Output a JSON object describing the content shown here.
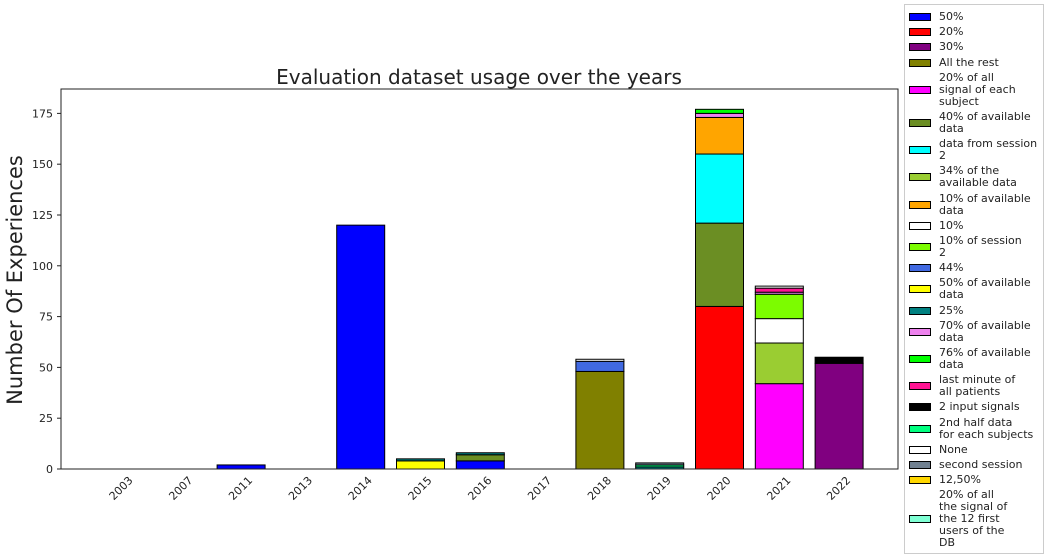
{
  "chart_data": {
    "type": "bar",
    "stacked": true,
    "title": "Evaluation dataset usage over the years",
    "xlabel": "",
    "ylabel": "Number Of Experiences",
    "ylim": [
      0,
      187
    ],
    "yticks": [
      0,
      25,
      50,
      75,
      100,
      125,
      150,
      175
    ],
    "categories": [
      "2003",
      "2007",
      "2011",
      "2013",
      "2014",
      "2015",
      "2016",
      "2017",
      "2018",
      "2019",
      "2020",
      "2021",
      "2022"
    ],
    "grid": false,
    "legend_position": "right",
    "series": [
      {
        "name": "50%",
        "color": "#0000ff",
        "values": [
          0,
          0,
          2,
          0,
          120,
          0,
          4,
          0,
          0,
          0,
          0,
          0,
          0
        ]
      },
      {
        "name": "20%",
        "color": "#ff0000",
        "values": [
          0,
          0,
          0,
          0,
          0,
          0,
          0,
          0,
          0,
          0,
          80,
          0,
          0
        ]
      },
      {
        "name": "30%",
        "color": "#800080",
        "values": [
          0,
          0,
          0,
          0,
          0,
          0,
          0,
          0,
          0,
          0,
          0,
          0,
          52
        ]
      },
      {
        "name": "All the rest",
        "color": "#808000",
        "values": [
          0,
          0,
          0,
          0,
          0,
          0,
          0,
          0,
          48,
          0,
          0,
          0,
          0
        ]
      },
      {
        "name": "20% of all\nsignal of each\nsubject",
        "color": "#ff00ff",
        "values": [
          0,
          0,
          0,
          0,
          0,
          0,
          0,
          0,
          0,
          0,
          0,
          42,
          0
        ]
      },
      {
        "name": "40% of available\ndata",
        "color": "#6b8e23",
        "values": [
          0,
          0,
          0,
          0,
          0,
          0,
          3,
          0,
          0,
          0,
          41,
          0,
          0
        ]
      },
      {
        "name": "data from session\n2",
        "color": "#00ffff",
        "values": [
          0,
          0,
          0,
          0,
          0,
          0,
          0,
          0,
          0,
          0,
          34,
          0,
          0
        ]
      },
      {
        "name": "34% of the\navailable data",
        "color": "#9acd32",
        "values": [
          0,
          0,
          0,
          0,
          0,
          0,
          0,
          0,
          0,
          0,
          0,
          20,
          0
        ]
      },
      {
        "name": "10% of available\ndata",
        "color": "#ffa500",
        "values": [
          0,
          0,
          0,
          0,
          0,
          0,
          0,
          0,
          0,
          0,
          18,
          0,
          0
        ]
      },
      {
        "name": "10%",
        "color": "#ffffff",
        "values": [
          0,
          0,
          0,
          0,
          0,
          0,
          0,
          0,
          0,
          0,
          0,
          12,
          0
        ]
      },
      {
        "name": "10% of session\n2",
        "color": "#7cfc00",
        "values": [
          0,
          0,
          0,
          0,
          0,
          0,
          0,
          0,
          0,
          0,
          0,
          12,
          0
        ]
      },
      {
        "name": "44%",
        "color": "#4169e1",
        "values": [
          0,
          0,
          0,
          0,
          0,
          0,
          0,
          0,
          5,
          0,
          0,
          0,
          0
        ]
      },
      {
        "name": "50% of available\ndata",
        "color": "#ffff00",
        "values": [
          0,
          0,
          0,
          0,
          0,
          4,
          0,
          0,
          0,
          0,
          0,
          0,
          0
        ]
      },
      {
        "name": "25%",
        "color": "#008080",
        "values": [
          0,
          0,
          0,
          0,
          0,
          1,
          1,
          0,
          0,
          1,
          0,
          0,
          0
        ]
      },
      {
        "name": "70% of available\ndata",
        "color": "#ee82ee",
        "values": [
          0,
          0,
          0,
          0,
          0,
          0,
          0,
          0,
          0,
          0,
          2,
          1,
          0
        ]
      },
      {
        "name": "76% of available\ndata",
        "color": "#00ff00",
        "values": [
          0,
          0,
          0,
          0,
          0,
          0,
          0,
          0,
          0,
          0,
          2,
          0,
          0
        ]
      },
      {
        "name": "last minute of\nall patients",
        "color": "#ff1493",
        "values": [
          0,
          0,
          0,
          0,
          0,
          0,
          0,
          0,
          0,
          0,
          0,
          2,
          0
        ]
      },
      {
        "name": "2 input signals",
        "color": "#000000",
        "values": [
          0,
          0,
          0,
          0,
          0,
          0,
          0,
          0,
          0,
          0,
          0,
          0,
          3
        ]
      },
      {
        "name": "2nd half data\nfor each subjects",
        "color": "#00ff7f",
        "values": [
          0,
          0,
          0,
          0,
          0,
          0,
          0,
          0,
          0,
          1,
          0,
          0,
          0
        ]
      },
      {
        "name": "None",
        "color": "#ffffff",
        "values": [
          0,
          0,
          0,
          0,
          0,
          0,
          0,
          0,
          1,
          0,
          0,
          1,
          0
        ]
      },
      {
        "name": "second session",
        "color": "#708090",
        "values": [
          0,
          0,
          0,
          0,
          0,
          0,
          0,
          0,
          0,
          1,
          0,
          0,
          0
        ]
      },
      {
        "name": "12,50%",
        "color": "#ffd700",
        "values": [
          0,
          0,
          0,
          0,
          0,
          0,
          0,
          0,
          0,
          0,
          0,
          0,
          0
        ]
      },
      {
        "name": "20% of all\nthe signal of\nthe 12 first\nusers of the\nDB",
        "color": "#7fffd4",
        "values": [
          0,
          0,
          0,
          0,
          0,
          0,
          0,
          0,
          0,
          0,
          0,
          0,
          0
        ]
      }
    ]
  }
}
